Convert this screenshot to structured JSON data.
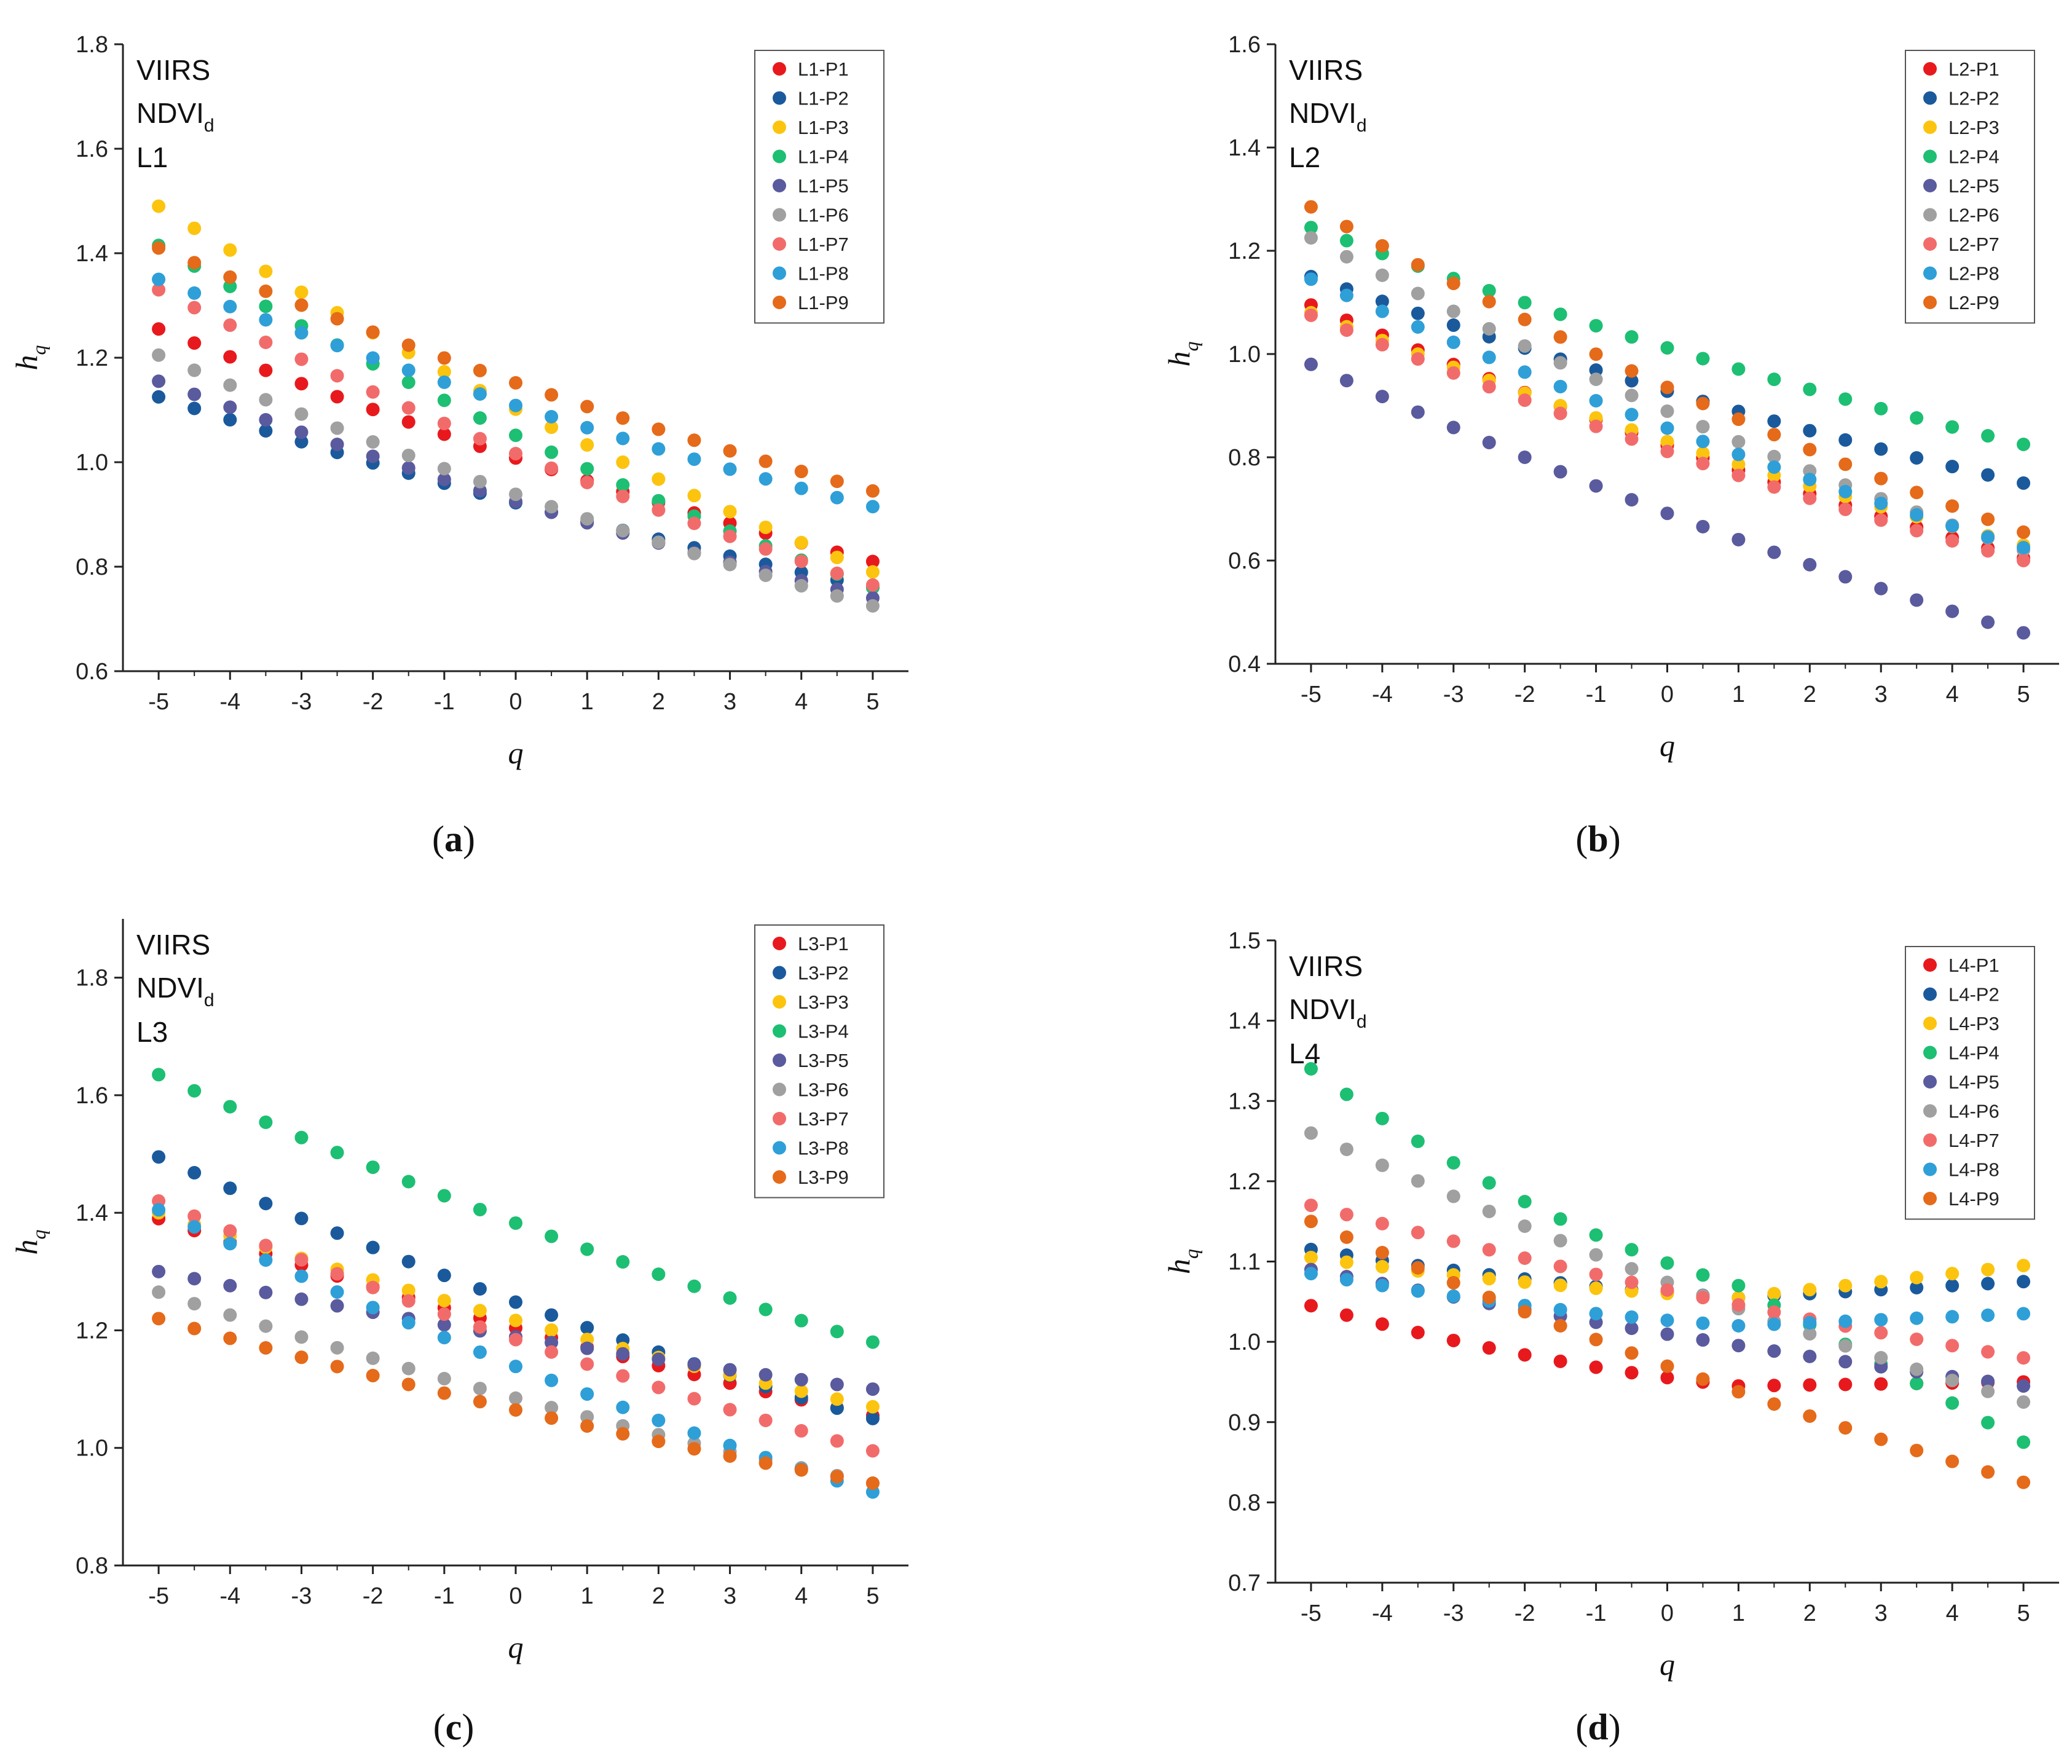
{
  "figure": {
    "x_values": [
      -5,
      -4.5,
      -4,
      -3.5,
      -3,
      -2.5,
      -2,
      -1.5,
      -1,
      -0.5,
      0,
      0.5,
      1,
      1.5,
      2,
      2.5,
      3,
      3.5,
      4,
      4.5,
      5
    ]
  },
  "chart_data": [
    {
      "type": "scatter",
      "panel_label": "a",
      "title": "",
      "annotation_lines": [
        "VIIRS",
        "NDVI",
        "L1"
      ],
      "annotation_subscript": "d",
      "xlabel": "q",
      "ylabel": "h",
      "ylabel_subscript": "q",
      "xlim": [
        -5.5,
        5.5
      ],
      "ylim": [
        0.6,
        1.8
      ],
      "xticks": [
        -5,
        -4,
        -3,
        -2,
        -1,
        0,
        1,
        2,
        3,
        4,
        5
      ],
      "yticks": [
        0.6,
        0.8,
        1.0,
        1.2,
        1.4,
        1.6,
        1.8
      ],
      "ytick_labels": [
        "0.6",
        "0.8",
        "1.0",
        "1.2",
        "1.4",
        "1.6",
        "1.8"
      ],
      "legend_position": "top-right",
      "series": [
        {
          "name": "L1-P1",
          "color": "#e8191d",
          "start": 1.255,
          "end": 0.81
        },
        {
          "name": "L1-P2",
          "color": "#1a5a9c",
          "start": 1.125,
          "end": 0.76
        },
        {
          "name": "L1-P3",
          "color": "#fcc40e",
          "start": 1.49,
          "end": 0.79
        },
        {
          "name": "L1-P4",
          "color": "#1dbf73",
          "start": 1.415,
          "end": 0.76
        },
        {
          "name": "L1-P5",
          "color": "#5a5a9e",
          "start": 1.155,
          "end": 0.74
        },
        {
          "name": "L1-P6",
          "color": "#a0a0a0",
          "start": 1.205,
          "end": 0.725
        },
        {
          "name": "L1-P7",
          "color": "#f26b6b",
          "start": 1.33,
          "end": 0.765
        },
        {
          "name": "L1-P8",
          "color": "#2f9fd8",
          "start": 1.35,
          "end": 0.915
        },
        {
          "name": "L1-P9",
          "color": "#e56a1a",
          "start": 1.41,
          "end": 0.945
        }
      ]
    },
    {
      "type": "scatter",
      "panel_label": "b",
      "title": "",
      "annotation_lines": [
        "VIIRS",
        "NDVI",
        "L2"
      ],
      "annotation_subscript": "d",
      "xlabel": "q",
      "ylabel": "h",
      "ylabel_subscript": "q",
      "xlim": [
        -5.5,
        5.5
      ],
      "ylim": [
        0.4,
        1.6
      ],
      "xticks": [
        -5,
        -4,
        -3,
        -2,
        -1,
        0,
        1,
        2,
        3,
        4,
        5
      ],
      "yticks": [
        0.4,
        0.6,
        0.8,
        1.0,
        1.2,
        1.4,
        1.6
      ],
      "ytick_labels": [
        "0.4",
        "0.6",
        "0.8",
        "1.0",
        "1.2",
        "1.4",
        "1.6"
      ],
      "legend_position": "top-right",
      "series": [
        {
          "name": "L2-P1",
          "color": "#e8191d",
          "start": 1.095,
          "end": 0.605
        },
        {
          "name": "L2-P2",
          "color": "#1a5a9c",
          "start": 1.15,
          "end": 0.75
        },
        {
          "name": "L2-P3",
          "color": "#fcc40e",
          "start": 1.08,
          "end": 0.63
        },
        {
          "name": "L2-P4",
          "color": "#1dbf73",
          "start": 1.245,
          "end": 0.825
        },
        {
          "name": "L2-P5",
          "color": "#5a5a9e",
          "start": 0.98,
          "end": 0.46
        },
        {
          "name": "L2-P6",
          "color": "#a0a0a0",
          "start": 1.225,
          "end": 0.62
        },
        {
          "name": "L2-P7",
          "color": "#f26b6b",
          "start": 1.075,
          "end": 0.6
        },
        {
          "name": "L2-P8",
          "color": "#2f9fd8",
          "start": 1.145,
          "end": 0.625
        },
        {
          "name": "L2-P9",
          "color": "#e56a1a",
          "start": 1.285,
          "end": 0.655
        }
      ]
    },
    {
      "type": "scatter",
      "panel_label": "c",
      "title": "",
      "annotation_lines": [
        "VIIRS",
        "NDVI",
        "L3"
      ],
      "annotation_subscript": "d",
      "xlabel": "q",
      "ylabel": "h",
      "ylabel_subscript": "q",
      "xlim": [
        -5.5,
        5.5
      ],
      "ylim": [
        0.8,
        1.9
      ],
      "xticks": [
        -5,
        -4,
        -3,
        -2,
        -1,
        0,
        1,
        2,
        3,
        4,
        5
      ],
      "yticks": [
        0.8,
        1.0,
        1.2,
        1.4,
        1.6,
        1.8
      ],
      "ytick_labels": [
        "0.8",
        "1.0",
        "1.2",
        "1.4",
        "1.6",
        "1.8"
      ],
      "legend_position": "top-right",
      "series": [
        {
          "name": "L3-P1",
          "color": "#e8191d",
          "start": 1.39,
          "end": 1.055
        },
        {
          "name": "L3-P2",
          "color": "#1a5a9c",
          "start": 1.495,
          "end": 1.05
        },
        {
          "name": "L3-P3",
          "color": "#fcc40e",
          "start": 1.4,
          "end": 1.07
        },
        {
          "name": "L3-P4",
          "color": "#1dbf73",
          "start": 1.635,
          "end": 1.18
        },
        {
          "name": "L3-P5",
          "color": "#5a5a9e",
          "start": 1.3,
          "end": 1.1
        },
        {
          "name": "L3-P6",
          "color": "#a0a0a0",
          "start": 1.265,
          "end": 0.94
        },
        {
          "name": "L3-P7",
          "color": "#f26b6b",
          "start": 1.42,
          "end": 0.995
        },
        {
          "name": "L3-P8",
          "color": "#2f9fd8",
          "start": 1.405,
          "end": 0.925
        },
        {
          "name": "L3-P9",
          "color": "#e56a1a",
          "start": 1.22,
          "end": 0.94
        }
      ]
    },
    {
      "type": "scatter",
      "panel_label": "d",
      "title": "",
      "annotation_lines": [
        "VIIRS",
        "NDVI",
        "L4"
      ],
      "annotation_subscript": "d",
      "xlabel": "q",
      "ylabel": "h",
      "ylabel_subscript": "q",
      "xlim": [
        -5.5,
        5.5
      ],
      "ylim": [
        0.7,
        1.5
      ],
      "xticks": [
        -5,
        -4,
        -3,
        -2,
        -1,
        0,
        1,
        2,
        3,
        4,
        5
      ],
      "yticks": [
        0.7,
        0.8,
        0.9,
        1.0,
        1.1,
        1.2,
        1.3,
        1.4,
        1.5
      ],
      "ytick_labels": [
        "0.7",
        "0.8",
        "0.9",
        "1.0",
        "1.1",
        "1.2",
        "1.3",
        "1.4",
        "1.5"
      ],
      "legend_position": "top-right",
      "series": [
        {
          "name": "L4-P1",
          "color": "#e8191d",
          "start": 1.045,
          "end": 0.95,
          "mid": 0.945
        },
        {
          "name": "L4-P2",
          "color": "#1a5a9c",
          "start": 1.115,
          "end": 1.075,
          "mid": 1.055
        },
        {
          "name": "L4-P3",
          "color": "#fcc40e",
          "start": 1.105,
          "end": 1.095,
          "mid": 1.055
        },
        {
          "name": "L4-P4",
          "color": "#1dbf73",
          "start": 1.34,
          "end": 0.875,
          "mid": 1.07
        },
        {
          "name": "L4-P5",
          "color": "#5a5a9e",
          "start": 1.09,
          "end": 0.945
        },
        {
          "name": "L4-P6",
          "color": "#a0a0a0",
          "start": 1.26,
          "end": 0.925
        },
        {
          "name": "L4-P7",
          "color": "#f26b6b",
          "start": 1.17,
          "end": 0.98
        },
        {
          "name": "L4-P8",
          "color": "#2f9fd8",
          "start": 1.085,
          "end": 1.035,
          "mid": 1.02
        },
        {
          "name": "L4-P9",
          "color": "#e56a1a",
          "start": 1.15,
          "end": 0.825
        }
      ]
    }
  ]
}
